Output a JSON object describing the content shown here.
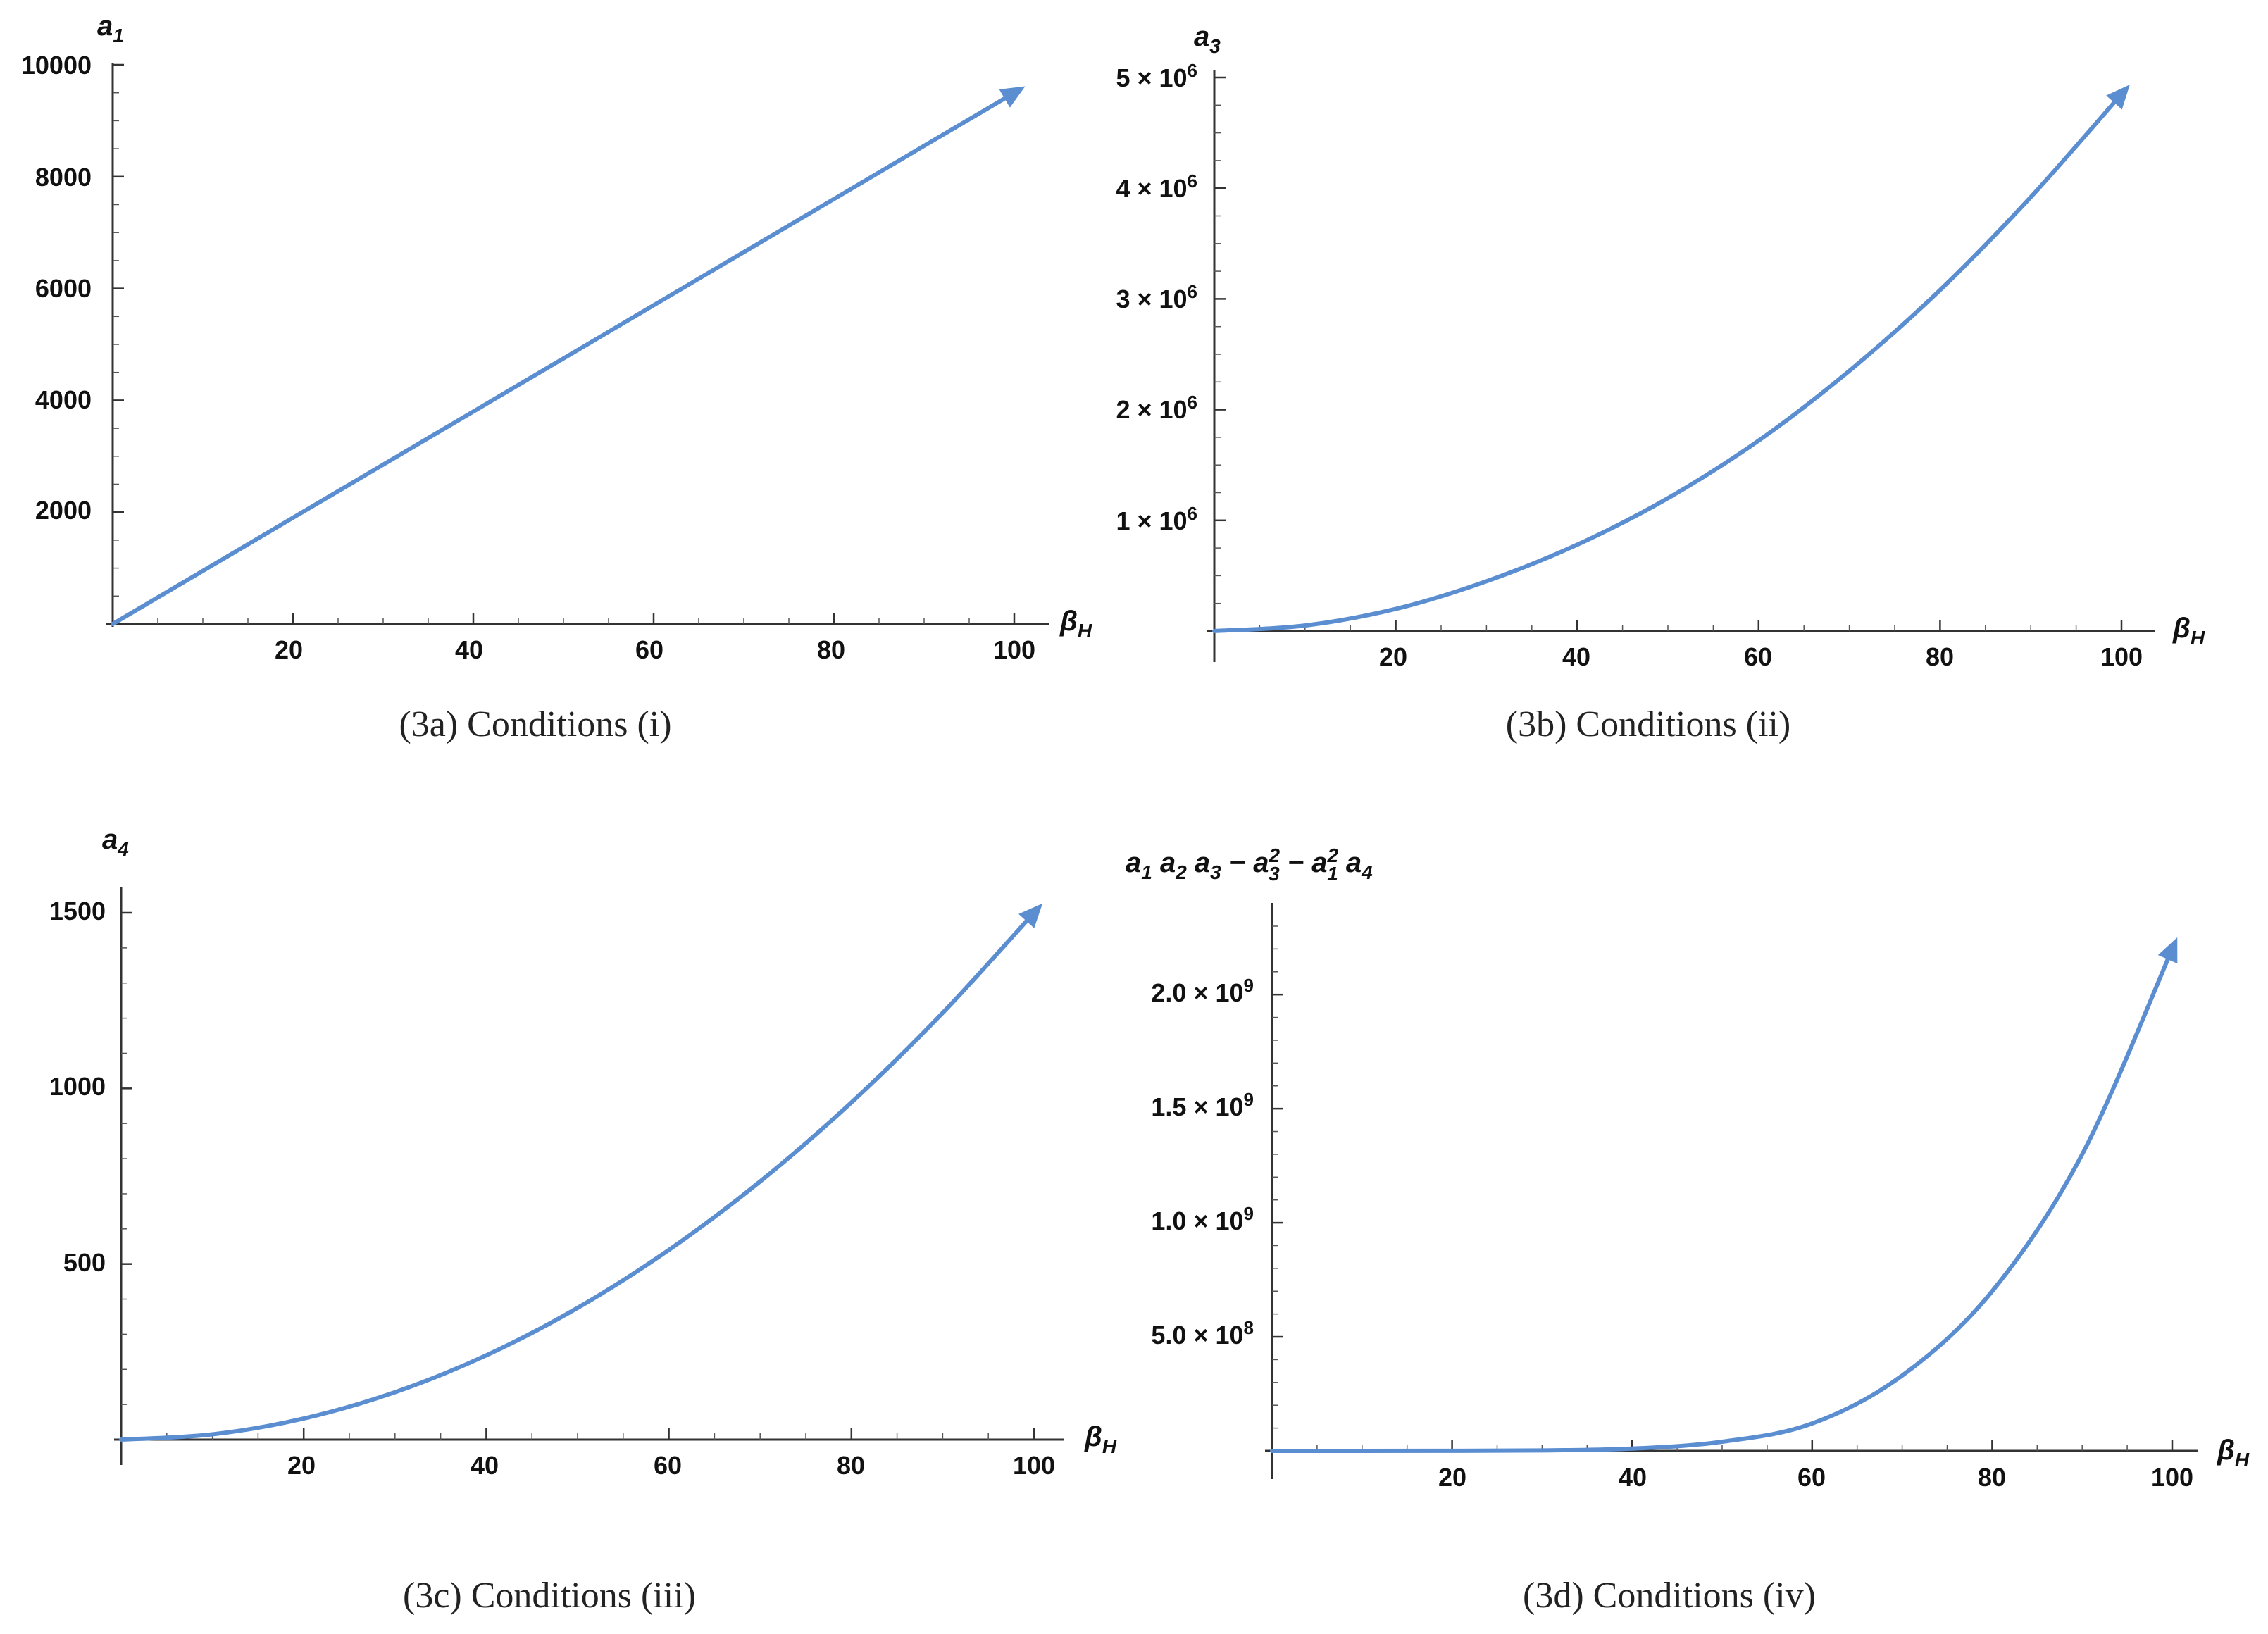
{
  "chart_data": [
    {
      "type": "line",
      "xlabel": "β_H",
      "ylabel": "a_1",
      "xlim": [
        0,
        100
      ],
      "ylim": [
        0,
        10000
      ],
      "x_ticks": [
        "20",
        "40",
        "60",
        "80",
        "100"
      ],
      "y_ticks": [
        "2000",
        "4000",
        "6000",
        "8000",
        "10000"
      ],
      "caption": "(3a) Conditions (i)",
      "series": [
        {
          "x": [
            0,
            10,
            20,
            30,
            40,
            50,
            60,
            70,
            80,
            90,
            100
          ],
          "y": [
            0,
            950,
            1900,
            2850,
            3800,
            4750,
            5700,
            6650,
            7600,
            8550,
            9500
          ]
        }
      ],
      "arrow_at_end": true,
      "color": "#5b8ed1"
    },
    {
      "type": "line",
      "xlabel": "β_H",
      "ylabel": "a_3",
      "xlim": [
        0,
        100
      ],
      "ylim": [
        0,
        5000000
      ],
      "x_ticks": [
        "20",
        "40",
        "60",
        "80",
        "100"
      ],
      "y_ticks": [
        "1 × 10^6",
        "2 × 10^6",
        "3 × 10^6",
        "4 × 10^6",
        "5 × 10^6"
      ],
      "caption": "(3b) Conditions (ii)",
      "series": [
        {
          "x": [
            0,
            10,
            20,
            30,
            40,
            50,
            60,
            70,
            80,
            90,
            100
          ],
          "y": [
            0,
            50000,
            200000,
            450000,
            780000,
            1200000,
            1720000,
            2350000,
            3080000,
            3920000,
            4850000
          ]
        }
      ],
      "arrow_at_end": true,
      "color": "#5b8ed1"
    },
    {
      "type": "line",
      "xlabel": "β_H",
      "ylabel": "a_4",
      "xlim": [
        0,
        100
      ],
      "ylim": [
        0,
        1500
      ],
      "x_ticks": [
        "20",
        "40",
        "60",
        "80",
        "100"
      ],
      "y_ticks": [
        "500",
        "1000",
        "1500"
      ],
      "caption": "(3c) Conditions (iii)",
      "series": [
        {
          "x": [
            0,
            10,
            20,
            30,
            40,
            50,
            60,
            70,
            80,
            90,
            100
          ],
          "y": [
            0,
            15,
            60,
            135,
            240,
            375,
            540,
            735,
            960,
            1215,
            1500
          ]
        }
      ],
      "arrow_at_end": true,
      "color": "#5b8ed1"
    },
    {
      "type": "line",
      "xlabel": "β_H",
      "ylabel": "a_1 a_2 a_3 − a_3^2 − a_1^2 a_4",
      "xlim": [
        0,
        100
      ],
      "ylim": [
        0,
        2300000000
      ],
      "x_ticks": [
        "20",
        "40",
        "60",
        "80",
        "100"
      ],
      "y_ticks": [
        "5.0 × 10^8",
        "1.0 × 10^9",
        "1.5 × 10^9",
        "2.0 × 10^9"
      ],
      "caption": "(3d) Conditions (iv)",
      "series": [
        {
          "x": [
            0,
            10,
            20,
            30,
            40,
            50,
            60,
            70,
            80,
            90,
            100
          ],
          "y": [
            0,
            0,
            300000,
            2000000,
            10000000,
            40000000,
            120000000,
            330000000,
            700000000,
            1300000000,
            2200000000
          ]
        }
      ],
      "arrow_at_end": true,
      "color": "#5b8ed1"
    }
  ]
}
